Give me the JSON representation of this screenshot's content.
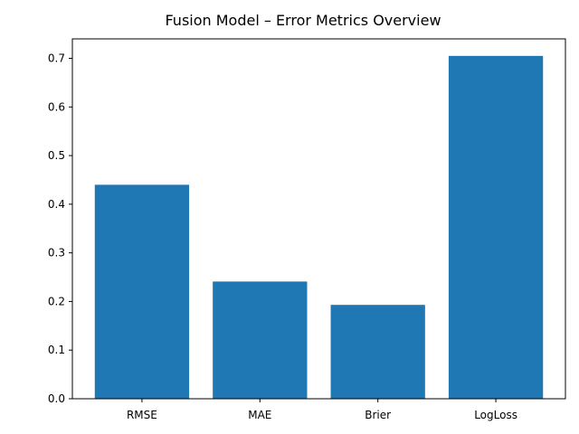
{
  "chart_data": {
    "type": "bar",
    "title": "Fusion Model – Error Metrics Overview",
    "xlabel": "",
    "ylabel": "",
    "categories": [
      "RMSE",
      "MAE",
      "Brier",
      "LogLoss"
    ],
    "values": [
      0.44,
      0.241,
      0.193,
      0.705
    ],
    "ylim": [
      0,
      0.74
    ],
    "yticks": [
      0.0,
      0.1,
      0.2,
      0.3,
      0.4,
      0.5,
      0.6,
      0.7
    ],
    "ytick_labels": [
      "0.0",
      "0.1",
      "0.2",
      "0.3",
      "0.4",
      "0.5",
      "0.6",
      "0.7"
    ],
    "grid": false,
    "colors": {
      "bar": "#1f77b4"
    }
  }
}
